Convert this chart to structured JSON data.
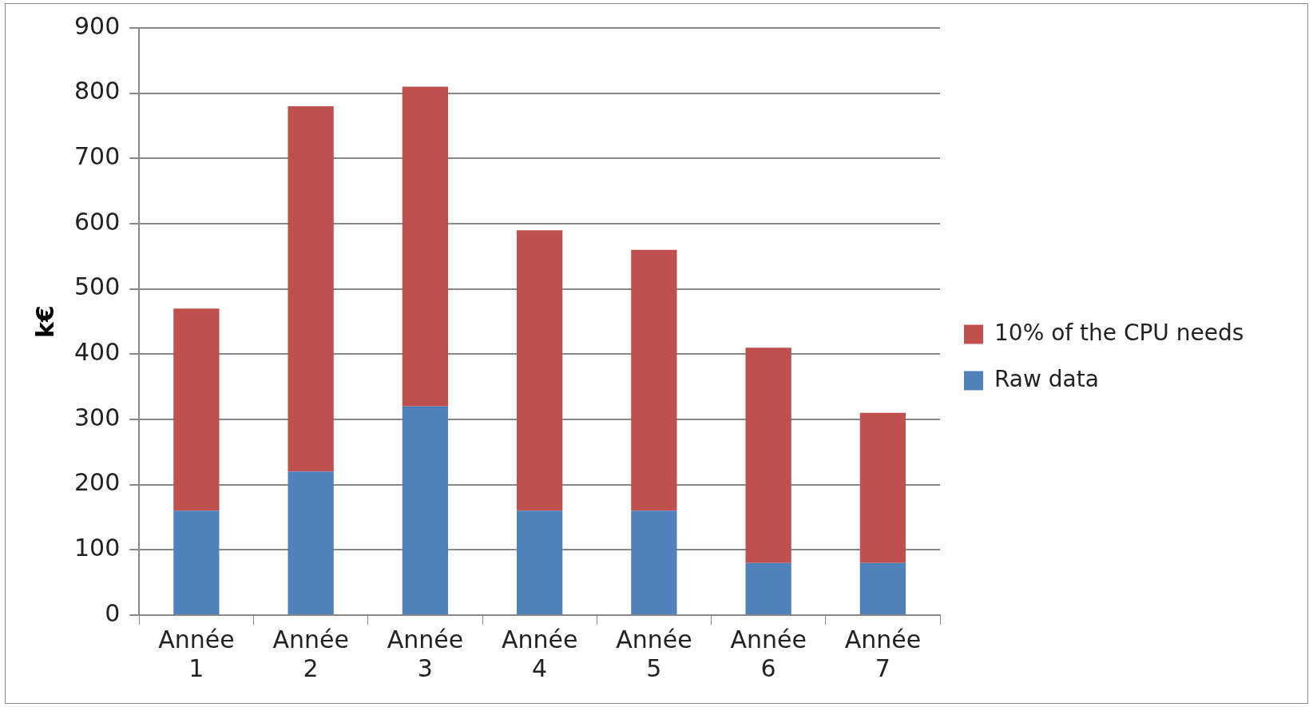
{
  "chart_data": {
    "type": "bar",
    "ylabel": "k€",
    "stacked": true,
    "legend": "right",
    "grid": "y",
    "categories": [
      "Année 1",
      "Année 2",
      "Année 3",
      "Année 4",
      "Année 5",
      "Année 6",
      "Année 7"
    ],
    "ylim": [
      0,
      900
    ],
    "yticks": [
      0,
      100,
      200,
      300,
      400,
      500,
      600,
      700,
      800,
      900
    ],
    "series": [
      {
        "name": "Raw data",
        "color": "#4f81bd",
        "values": [
          160,
          220,
          320,
          160,
          160,
          80,
          80
        ]
      },
      {
        "name": "10% of the CPU needs",
        "color": "#c0504d",
        "values": [
          310,
          560,
          490,
          430,
          400,
          330,
          230
        ]
      }
    ]
  }
}
